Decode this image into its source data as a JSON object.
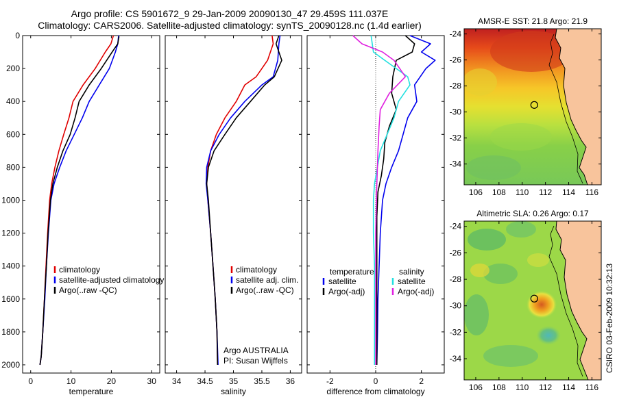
{
  "header": {
    "line1": "Argo profile: CS 5901672_9 29-Jan-2009 20090130_47 29.459S 111.037E",
    "line2": "Climatology: CARS2006. Satellite-adjusted climatology: synTS_20090128.nc (1.4d earlier)"
  },
  "colors": {
    "red": "#e00000",
    "blue": "#0000ee",
    "black": "#000000",
    "cyan": "#22e0e0",
    "magenta": "#e020e0",
    "land": "#f8c49c"
  },
  "chart_data": [
    {
      "type": "line",
      "id": "temperature",
      "xlabel": "temperature",
      "ylabel": "",
      "xlim": [
        -2,
        32
      ],
      "ylim": [
        2050,
        0
      ],
      "xticks": [
        0,
        10,
        20,
        30
      ],
      "yticks": [
        0,
        200,
        400,
        600,
        800,
        1000,
        1200,
        1400,
        1600,
        1800,
        2000
      ],
      "legend": {
        "placement": "lower-right",
        "entries": [
          {
            "label": "climatology",
            "color": "#e00000"
          },
          {
            "label": "satellite-adjusted climatology",
            "color": "#0000ee"
          },
          {
            "label": "Argo(..raw -QC)",
            "color": "#000000"
          }
        ]
      },
      "series": [
        {
          "name": "climatology",
          "color": "#e00000",
          "x": [
            20.5,
            19.9,
            18.5,
            16.0,
            13.0,
            10.5,
            9.5,
            8.2,
            7.0,
            6.0,
            5.2,
            4.7,
            4.2,
            3.8,
            3.4,
            3.0,
            2.6,
            2.3
          ],
          "y": [
            0,
            50,
            100,
            200,
            300,
            400,
            500,
            600,
            700,
            800,
            900,
            1000,
            1200,
            1400,
            1600,
            1800,
            1950,
            2000
          ]
        },
        {
          "name": "satellite-adjusted climatology",
          "color": "#0000ee",
          "x": [
            21.8,
            21.6,
            21.0,
            19.5,
            17.0,
            14.5,
            12.8,
            10.8,
            8.8,
            7.2,
            5.8,
            5.0,
            4.4,
            3.9,
            3.5,
            3.0,
            2.6,
            2.3
          ],
          "y": [
            0,
            50,
            100,
            200,
            300,
            400,
            500,
            600,
            700,
            800,
            900,
            1000,
            1200,
            1400,
            1600,
            1800,
            1950,
            2000
          ]
        },
        {
          "name": "Argo(..raw -QC)",
          "color": "#000000",
          "x": [
            21.9,
            21.6,
            20.2,
            17.5,
            14.5,
            12.0,
            11.0,
            9.8,
            8.0,
            6.6,
            5.5,
            4.9,
            4.3,
            3.9,
            3.4,
            3.0,
            2.6,
            2.3
          ],
          "y": [
            5,
            50,
            100,
            200,
            300,
            400,
            500,
            600,
            700,
            800,
            900,
            1000,
            1200,
            1400,
            1600,
            1800,
            1950,
            2000
          ]
        }
      ]
    },
    {
      "type": "line",
      "id": "salinity",
      "xlabel": "salinity",
      "ylabel": "",
      "xlim": [
        33.8,
        36.2
      ],
      "ylim": [
        2050,
        0
      ],
      "xticks": [
        34,
        34.5,
        35,
        35.5,
        36
      ],
      "legend": {
        "placement": "lower-right",
        "entries": [
          {
            "label": "climatology",
            "color": "#e00000"
          },
          {
            "label": "satellite adj. clim.",
            "color": "#0000ee"
          },
          {
            "label": "Argo(..raw -QC)",
            "color": "#000000"
          }
        ]
      },
      "annotations": [
        "Argo AUSTRALIA",
        "PI: Susan Wijffels"
      ],
      "series": [
        {
          "name": "climatology",
          "color": "#e00000",
          "x": [
            35.68,
            35.7,
            35.6,
            35.4,
            35.2,
            35.05,
            34.85,
            34.7,
            34.6,
            34.55,
            34.53,
            34.55,
            34.6,
            34.64,
            34.68,
            34.71,
            34.72
          ],
          "y": [
            0,
            50,
            150,
            250,
            300,
            400,
            500,
            600,
            700,
            800,
            900,
            1000,
            1200,
            1400,
            1600,
            1800,
            2000
          ]
        },
        {
          "name": "satellite adj. clim.",
          "color": "#0000ee",
          "x": [
            35.82,
            35.8,
            35.78,
            35.7,
            35.5,
            35.2,
            34.95,
            34.75,
            34.6,
            34.53,
            34.52,
            34.55,
            34.6,
            34.64,
            34.68,
            34.71,
            34.73
          ],
          "y": [
            0,
            50,
            150,
            250,
            300,
            400,
            500,
            600,
            700,
            800,
            900,
            1000,
            1200,
            1400,
            1600,
            1800,
            2000
          ]
        },
        {
          "name": "Argo(..raw -QC)",
          "color": "#000000",
          "x": [
            35.8,
            35.75,
            35.85,
            35.72,
            35.55,
            35.3,
            35.05,
            34.85,
            34.66,
            34.56,
            34.53,
            34.56,
            34.6,
            34.64,
            34.68,
            34.71,
            34.72
          ],
          "y": [
            0,
            50,
            150,
            250,
            300,
            400,
            500,
            600,
            700,
            800,
            900,
            1000,
            1200,
            1400,
            1600,
            1800,
            2000
          ]
        }
      ]
    },
    {
      "type": "line",
      "id": "difference",
      "xlabel": "difference from climatology",
      "ylabel": "",
      "xlim": [
        -3,
        3
      ],
      "ylim": [
        2050,
        0
      ],
      "xticks": [
        -2,
        0,
        2
      ],
      "legend": {
        "placement": "lower-right",
        "groups": [
          {
            "title": "temperature",
            "entries": [
              {
                "label": "satellite",
                "color": "#0000ee"
              },
              {
                "label": "Argo(-adj)",
                "color": "#000000"
              }
            ]
          },
          {
            "title": "salinity",
            "entries": [
              {
                "label": "satellite",
                "color": "#22e0e0"
              },
              {
                "label": "Argo(-adj)",
                "color": "#e020e0"
              }
            ]
          }
        ]
      },
      "series": [
        {
          "name": "satellite (temperature)",
          "color": "#0000ee",
          "x": [
            1.5,
            2.4,
            2.0,
            2.6,
            2.2,
            1.7,
            1.8,
            1.4,
            1.2,
            1.0,
            0.7,
            0.45,
            0.3,
            0.2,
            0.15,
            0.1,
            0.08,
            0.05
          ],
          "y": [
            0,
            50,
            100,
            150,
            200,
            300,
            400,
            500,
            600,
            700,
            800,
            900,
            1000,
            1200,
            1400,
            1600,
            1800,
            2000
          ]
        },
        {
          "name": "Argo(-adj) (temperature)",
          "color": "#000000",
          "x": [
            1.3,
            1.7,
            1.6,
            0.9,
            0.75,
            0.7,
            0.9,
            0.6,
            0.4,
            0.35,
            0.25,
            0.1,
            0.05,
            0.05,
            0.05,
            0.05,
            0.05
          ],
          "y": [
            0,
            50,
            100,
            150,
            250,
            350,
            450,
            550,
            650,
            750,
            850,
            950,
            1100,
            1300,
            1500,
            1800,
            2000
          ]
        },
        {
          "name": "satellite (salinity)",
          "color": "#22e0e0",
          "x": [
            -0.2,
            -0.1,
            0.4,
            1.4,
            1.5,
            1.0,
            0.8,
            0.5,
            0.2,
            -0.05,
            -0.1,
            -0.1,
            -0.05,
            -0.05,
            -0.05,
            -0.05
          ],
          "y": [
            0,
            100,
            150,
            250,
            300,
            400,
            500,
            600,
            700,
            900,
            1000,
            1200,
            1400,
            1600,
            1800,
            2000
          ]
        },
        {
          "name": "Argo(-adj) (salinity)",
          "color": "#e020e0",
          "x": [
            -1.0,
            -0.6,
            0.3,
            0.8,
            1.3,
            0.6,
            0.2,
            0.15,
            0.1,
            0.05,
            0.0,
            0.0,
            0.0,
            0.0
          ],
          "y": [
            0,
            50,
            100,
            150,
            250,
            350,
            450,
            550,
            700,
            900,
            1200,
            1500,
            1800,
            2000
          ]
        }
      ]
    },
    {
      "type": "heatmap",
      "id": "sst-map",
      "title": "AMSR-E SST: 21.8 Argo: 21.9",
      "xlim": [
        105,
        116.8
      ],
      "ylim": [
        -35.6,
        -23.6
      ],
      "xticks": [
        106,
        108,
        110,
        112,
        114,
        116
      ],
      "yticks": [
        -24,
        -26,
        -28,
        -30,
        -32,
        -34
      ],
      "marker": {
        "lon": 111.037,
        "lat": -29.459
      }
    },
    {
      "type": "heatmap",
      "id": "sla-map",
      "title": "Altimetric SLA: 0.26 Argo: 0.17",
      "xlim": [
        105,
        116.8
      ],
      "ylim": [
        -35.6,
        -23.6
      ],
      "xticks": [
        106,
        108,
        110,
        112,
        114,
        116
      ],
      "yticks": [
        -24,
        -26,
        -28,
        -30,
        -32,
        -34
      ],
      "marker": {
        "lon": 111.037,
        "lat": -29.459
      }
    }
  ],
  "footer": {
    "credit": "CSIRO 03-Feb-2009 10:32:13"
  }
}
